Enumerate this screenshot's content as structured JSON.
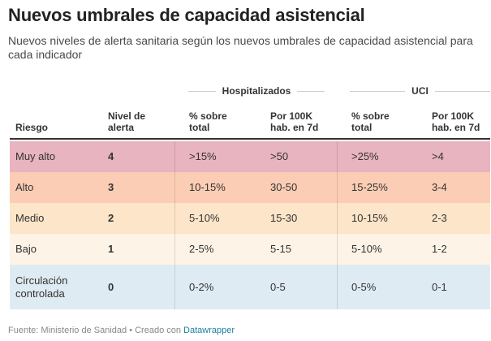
{
  "title": "Nuevos umbrales de capacidad asistencial",
  "subtitle": "Nuevos niveles de alerta sanitaria según los nuevos umbrales de capacidad asistencial para cada indicador",
  "groups": {
    "hospitalizados": "Hospitalizados",
    "uci": "UCI"
  },
  "headers": {
    "riesgo": "Riesgo",
    "nivel_line1": "Nivel de",
    "nivel_line2": "alerta",
    "hosp_pct_line1": "% sobre",
    "hosp_pct_line2": "total",
    "hosp_100k_line1": "Por 100K",
    "hosp_100k_line2": "hab. en 7d",
    "uci_pct_line1": "% sobre",
    "uci_pct_line2": "total",
    "uci_100k_line1": "Por 100K",
    "uci_100k_line2": "hab. en 7d"
  },
  "rows": [
    {
      "riesgo": "Muy alto",
      "nivel": "4",
      "hosp_pct": ">15%",
      "hosp_100k": ">50",
      "uci_pct": ">25%",
      "uci_100k": ">4",
      "color": "#e7b4bf"
    },
    {
      "riesgo": "Alto",
      "nivel": "3",
      "hosp_pct": "10-15%",
      "hosp_100k": "30-50",
      "uci_pct": "15-25%",
      "uci_100k": "3-4",
      "color": "#fbcdb4"
    },
    {
      "riesgo": "Medio",
      "nivel": "2",
      "hosp_pct": "5-10%",
      "hosp_100k": "15-30",
      "uci_pct": "10-15%",
      "uci_100k": "2-3",
      "color": "#fce5c9"
    },
    {
      "riesgo": "Bajo",
      "nivel": "1",
      "hosp_pct": "2-5%",
      "hosp_100k": "5-15",
      "uci_pct": "5-10%",
      "uci_100k": "1-2",
      "color": "#fdf3e6"
    },
    {
      "riesgo_line1": "Circulación",
      "riesgo_line2": "controlada",
      "nivel": "0",
      "hosp_pct": "0-2%",
      "hosp_100k": "0-5",
      "uci_pct": "0-5%",
      "uci_100k": "0-1",
      "color": "#dfebf3"
    }
  ],
  "footer": {
    "source": "Fuente: Ministerio de Sanidad • Creado con ",
    "link": "Datawrapper"
  }
}
